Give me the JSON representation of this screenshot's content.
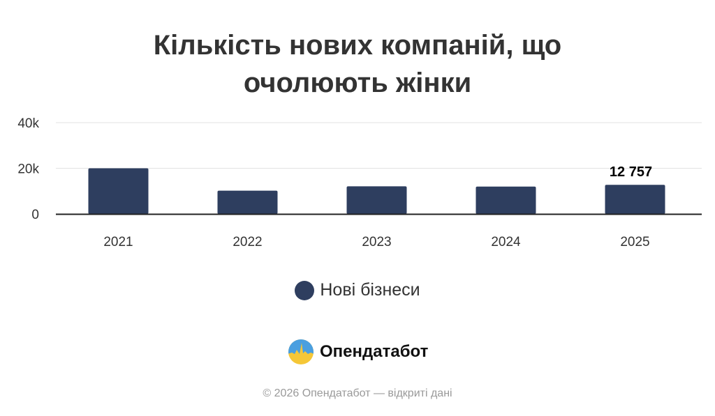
{
  "chart_data": {
    "type": "bar",
    "title_lines": [
      "Кількість нових компаній, що",
      "очолюють жінки"
    ],
    "categories": [
      "2021",
      "2022",
      "2023",
      "2024",
      "2025"
    ],
    "series": [
      {
        "name": "Нові бізнеси",
        "values": [
          20000,
          10200,
          12100,
          12000,
          12757
        ],
        "color": "#2e3e5f"
      }
    ],
    "data_labels": {
      "2025": "12 757"
    },
    "y_ticks": [
      "0",
      "20k",
      "40k"
    ],
    "ylim": [
      0,
      40000
    ],
    "grid": true,
    "legend_position": "bottom"
  },
  "branding": {
    "name": "Опендатабот",
    "copyright": "© 2026 Опендатабот — відкриті дані"
  }
}
